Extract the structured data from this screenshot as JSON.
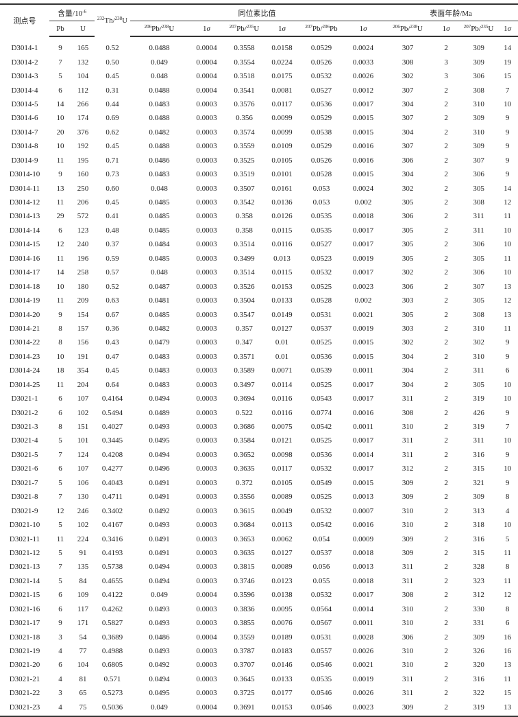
{
  "table": {
    "headers": {
      "spot": "测点号",
      "content_group": [
        {
          "t": "含量/10"
        },
        {
          "t": "-6",
          "sup": true
        }
      ],
      "thu": [
        {
          "t": "232",
          "sup": true
        },
        {
          "t": "Th/"
        },
        {
          "t": "238",
          "sup": true
        },
        {
          "t": "U"
        }
      ],
      "ratio_group": "同位素比值",
      "age_group": "表面年龄/Ma",
      "sub": [
        [
          {
            "t": "Pb"
          }
        ],
        [
          {
            "t": "U"
          }
        ],
        [
          {
            "t": "206",
            "sup": true
          },
          {
            "t": "Pb/"
          },
          {
            "t": "238",
            "sup": true
          },
          {
            "t": "U"
          }
        ],
        [
          {
            "t": "1"
          },
          {
            "t": "σ",
            "sig": true
          }
        ],
        [
          {
            "t": "207",
            "sup": true
          },
          {
            "t": "Pb/"
          },
          {
            "t": "235",
            "sup": true
          },
          {
            "t": "U"
          }
        ],
        [
          {
            "t": "1"
          },
          {
            "t": "σ",
            "sig": true
          }
        ],
        [
          {
            "t": "207",
            "sup": true
          },
          {
            "t": "Pb/"
          },
          {
            "t": "206",
            "sup": true
          },
          {
            "t": "Pb"
          }
        ],
        [
          {
            "t": "1"
          },
          {
            "t": "σ",
            "sig": true
          }
        ],
        [
          {
            "t": "206",
            "sup": true
          },
          {
            "t": "Pb/"
          },
          {
            "t": "238",
            "sup": true
          },
          {
            "t": "U"
          }
        ],
        [
          {
            "t": "1"
          },
          {
            "t": "σ",
            "sig": true
          }
        ],
        [
          {
            "t": "207",
            "sup": true
          },
          {
            "t": "Pb/"
          },
          {
            "t": "235",
            "sup": true
          },
          {
            "t": "U"
          }
        ],
        [
          {
            "t": "1"
          },
          {
            "t": "σ",
            "sig": true
          }
        ]
      ]
    },
    "rows": [
      [
        "D3014-1",
        "9",
        "165",
        "0.52",
        "0.0488",
        "0.0004",
        "0.3558",
        "0.0158",
        "0.0529",
        "0.0024",
        "307",
        "2",
        "309",
        "14"
      ],
      [
        "D3014-2",
        "7",
        "132",
        "0.50",
        "0.049",
        "0.0004",
        "0.3554",
        "0.0224",
        "0.0526",
        "0.0033",
        "308",
        "3",
        "309",
        "19"
      ],
      [
        "D3014-3",
        "5",
        "104",
        "0.45",
        "0.048",
        "0.0004",
        "0.3518",
        "0.0175",
        "0.0532",
        "0.0026",
        "302",
        "3",
        "306",
        "15"
      ],
      [
        "D3014-4",
        "6",
        "112",
        "0.31",
        "0.0488",
        "0.0004",
        "0.3541",
        "0.0081",
        "0.0527",
        "0.0012",
        "307",
        "2",
        "308",
        "7"
      ],
      [
        "D3014-5",
        "14",
        "266",
        "0.44",
        "0.0483",
        "0.0003",
        "0.3576",
        "0.0117",
        "0.0536",
        "0.0017",
        "304",
        "2",
        "310",
        "10"
      ],
      [
        "D3014-6",
        "10",
        "174",
        "0.69",
        "0.0488",
        "0.0003",
        "0.356",
        "0.0099",
        "0.0529",
        "0.0015",
        "307",
        "2",
        "309",
        "9"
      ],
      [
        "D3014-7",
        "20",
        "376",
        "0.62",
        "0.0482",
        "0.0003",
        "0.3574",
        "0.0099",
        "0.0538",
        "0.0015",
        "304",
        "2",
        "310",
        "9"
      ],
      [
        "D3014-8",
        "10",
        "192",
        "0.45",
        "0.0488",
        "0.0003",
        "0.3559",
        "0.0109",
        "0.0529",
        "0.0016",
        "307",
        "2",
        "309",
        "9"
      ],
      [
        "D3014-9",
        "11",
        "195",
        "0.71",
        "0.0486",
        "0.0003",
        "0.3525",
        "0.0105",
        "0.0526",
        "0.0016",
        "306",
        "2",
        "307",
        "9"
      ],
      [
        "D3014-10",
        "9",
        "160",
        "0.73",
        "0.0483",
        "0.0003",
        "0.3519",
        "0.0101",
        "0.0528",
        "0.0015",
        "304",
        "2",
        "306",
        "9"
      ],
      [
        "D3014-11",
        "13",
        "250",
        "0.60",
        "0.048",
        "0.0003",
        "0.3507",
        "0.0161",
        "0.053",
        "0.0024",
        "302",
        "2",
        "305",
        "14"
      ],
      [
        "D3014-12",
        "11",
        "206",
        "0.45",
        "0.0485",
        "0.0003",
        "0.3542",
        "0.0136",
        "0.053",
        "0.002",
        "305",
        "2",
        "308",
        "12"
      ],
      [
        "D3014-13",
        "29",
        "572",
        "0.41",
        "0.0485",
        "0.0003",
        "0.358",
        "0.0126",
        "0.0535",
        "0.0018",
        "306",
        "2",
        "311",
        "11"
      ],
      [
        "D3014-14",
        "6",
        "123",
        "0.48",
        "0.0485",
        "0.0003",
        "0.358",
        "0.0115",
        "0.0535",
        "0.0017",
        "305",
        "2",
        "311",
        "10"
      ],
      [
        "D3014-15",
        "12",
        "240",
        "0.37",
        "0.0484",
        "0.0003",
        "0.3514",
        "0.0116",
        "0.0527",
        "0.0017",
        "305",
        "2",
        "306",
        "10"
      ],
      [
        "D3014-16",
        "11",
        "196",
        "0.59",
        "0.0485",
        "0.0003",
        "0.3499",
        "0.013",
        "0.0523",
        "0.0019",
        "305",
        "2",
        "305",
        "11"
      ],
      [
        "D3014-17",
        "14",
        "258",
        "0.57",
        "0.048",
        "0.0003",
        "0.3514",
        "0.0115",
        "0.0532",
        "0.0017",
        "302",
        "2",
        "306",
        "10"
      ],
      [
        "D3014-18",
        "10",
        "180",
        "0.52",
        "0.0487",
        "0.0003",
        "0.3526",
        "0.0153",
        "0.0525",
        "0.0023",
        "306",
        "2",
        "307",
        "13"
      ],
      [
        "D3014-19",
        "11",
        "209",
        "0.63",
        "0.0481",
        "0.0003",
        "0.3504",
        "0.0133",
        "0.0528",
        "0.002",
        "303",
        "2",
        "305",
        "12"
      ],
      [
        "D3014-20",
        "9",
        "154",
        "0.67",
        "0.0485",
        "0.0003",
        "0.3547",
        "0.0149",
        "0.0531",
        "0.0021",
        "305",
        "2",
        "308",
        "13"
      ],
      [
        "D3014-21",
        "8",
        "157",
        "0.36",
        "0.0482",
        "0.0003",
        "0.357",
        "0.0127",
        "0.0537",
        "0.0019",
        "303",
        "2",
        "310",
        "11"
      ],
      [
        "D3014-22",
        "8",
        "156",
        "0.43",
        "0.0479",
        "0.0003",
        "0.347",
        "0.01",
        "0.0525",
        "0.0015",
        "302",
        "2",
        "302",
        "9"
      ],
      [
        "D3014-23",
        "10",
        "191",
        "0.47",
        "0.0483",
        "0.0003",
        "0.3571",
        "0.01",
        "0.0536",
        "0.0015",
        "304",
        "2",
        "310",
        "9"
      ],
      [
        "D3014-24",
        "18",
        "354",
        "0.45",
        "0.0483",
        "0.0003",
        "0.3589",
        "0.0071",
        "0.0539",
        "0.0011",
        "304",
        "2",
        "311",
        "6"
      ],
      [
        "D3014-25",
        "11",
        "204",
        "0.64",
        "0.0483",
        "0.0003",
        "0.3497",
        "0.0114",
        "0.0525",
        "0.0017",
        "304",
        "2",
        "305",
        "10"
      ],
      [
        "D3021-1",
        "6",
        "107",
        "0.4164",
        "0.0494",
        "0.0003",
        "0.3694",
        "0.0116",
        "0.0543",
        "0.0017",
        "311",
        "2",
        "319",
        "10"
      ],
      [
        "D3021-2",
        "6",
        "102",
        "0.5494",
        "0.0489",
        "0.0003",
        "0.522",
        "0.0116",
        "0.0774",
        "0.0016",
        "308",
        "2",
        "426",
        "9"
      ],
      [
        "D3021-3",
        "8",
        "151",
        "0.4027",
        "0.0493",
        "0.0003",
        "0.3686",
        "0.0075",
        "0.0542",
        "0.0011",
        "310",
        "2",
        "319",
        "7"
      ],
      [
        "D3021-4",
        "5",
        "101",
        "0.3445",
        "0.0495",
        "0.0003",
        "0.3584",
        "0.0121",
        "0.0525",
        "0.0017",
        "311",
        "2",
        "311",
        "10"
      ],
      [
        "D3021-5",
        "7",
        "124",
        "0.4208",
        "0.0494",
        "0.0003",
        "0.3652",
        "0.0098",
        "0.0536",
        "0.0014",
        "311",
        "2",
        "316",
        "9"
      ],
      [
        "D3021-6",
        "6",
        "107",
        "0.4277",
        "0.0496",
        "0.0003",
        "0.3635",
        "0.0117",
        "0.0532",
        "0.0017",
        "312",
        "2",
        "315",
        "10"
      ],
      [
        "D3021-7",
        "5",
        "106",
        "0.4043",
        "0.0491",
        "0.0003",
        "0.372",
        "0.0105",
        "0.0549",
        "0.0015",
        "309",
        "2",
        "321",
        "9"
      ],
      [
        "D3021-8",
        "7",
        "130",
        "0.4711",
        "0.0491",
        "0.0003",
        "0.3556",
        "0.0089",
        "0.0525",
        "0.0013",
        "309",
        "2",
        "309",
        "8"
      ],
      [
        "D3021-9",
        "12",
        "246",
        "0.3402",
        "0.0492",
        "0.0003",
        "0.3615",
        "0.0049",
        "0.0532",
        "0.0007",
        "310",
        "2",
        "313",
        "4"
      ],
      [
        "D3021-10",
        "5",
        "102",
        "0.4167",
        "0.0493",
        "0.0003",
        "0.3684",
        "0.0113",
        "0.0542",
        "0.0016",
        "310",
        "2",
        "318",
        "10"
      ],
      [
        "D3021-11",
        "11",
        "224",
        "0.3416",
        "0.0491",
        "0.0003",
        "0.3653",
        "0.0062",
        "0.054",
        "0.0009",
        "309",
        "2",
        "316",
        "5"
      ],
      [
        "D3021-12",
        "5",
        "91",
        "0.4193",
        "0.0491",
        "0.0003",
        "0.3635",
        "0.0127",
        "0.0537",
        "0.0018",
        "309",
        "2",
        "315",
        "11"
      ],
      [
        "D3021-13",
        "7",
        "135",
        "0.5738",
        "0.0494",
        "0.0003",
        "0.3815",
        "0.0089",
        "0.056",
        "0.0013",
        "311",
        "2",
        "328",
        "8"
      ],
      [
        "D3021-14",
        "5",
        "84",
        "0.4655",
        "0.0494",
        "0.0003",
        "0.3746",
        "0.0123",
        "0.055",
        "0.0018",
        "311",
        "2",
        "323",
        "11"
      ],
      [
        "D3021-15",
        "6",
        "109",
        "0.4122",
        "0.049",
        "0.0004",
        "0.3596",
        "0.0138",
        "0.0532",
        "0.0017",
        "308",
        "2",
        "312",
        "12"
      ],
      [
        "D3021-16",
        "6",
        "117",
        "0.4262",
        "0.0493",
        "0.0003",
        "0.3836",
        "0.0095",
        "0.0564",
        "0.0014",
        "310",
        "2",
        "330",
        "8"
      ],
      [
        "D3021-17",
        "9",
        "171",
        "0.5827",
        "0.0493",
        "0.0003",
        "0.3855",
        "0.0076",
        "0.0567",
        "0.0011",
        "310",
        "2",
        "331",
        "6"
      ],
      [
        "D3021-18",
        "3",
        "54",
        "0.3689",
        "0.0486",
        "0.0004",
        "0.3559",
        "0.0189",
        "0.0531",
        "0.0028",
        "306",
        "2",
        "309",
        "16"
      ],
      [
        "D3021-19",
        "4",
        "77",
        "0.4988",
        "0.0493",
        "0.0003",
        "0.3787",
        "0.0183",
        "0.0557",
        "0.0026",
        "310",
        "2",
        "326",
        "16"
      ],
      [
        "D3021-20",
        "6",
        "104",
        "0.6805",
        "0.0492",
        "0.0003",
        "0.3707",
        "0.0146",
        "0.0546",
        "0.0021",
        "310",
        "2",
        "320",
        "13"
      ],
      [
        "D3021-21",
        "4",
        "81",
        "0.571",
        "0.0494",
        "0.0003",
        "0.3645",
        "0.0133",
        "0.0535",
        "0.0019",
        "311",
        "2",
        "316",
        "11"
      ],
      [
        "D3021-22",
        "3",
        "65",
        "0.5273",
        "0.0495",
        "0.0003",
        "0.3725",
        "0.0177",
        "0.0546",
        "0.0026",
        "311",
        "2",
        "322",
        "15"
      ],
      [
        "D3021-23",
        "4",
        "75",
        "0.5036",
        "0.049",
        "0.0004",
        "0.3691",
        "0.0153",
        "0.0546",
        "0.0023",
        "309",
        "2",
        "319",
        "13"
      ]
    ]
  }
}
